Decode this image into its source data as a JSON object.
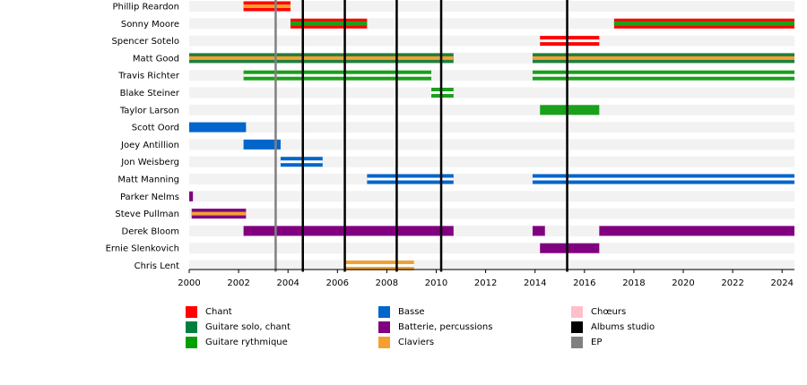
{
  "chart_data": {
    "type": "timeline",
    "title": "",
    "xlim": [
      2000,
      2024.5
    ],
    "x_ticks": [
      "2000",
      "2002",
      "2004",
      "2006",
      "2008",
      "2010",
      "2012",
      "2014",
      "2016",
      "2018",
      "2020",
      "2022",
      "2024"
    ],
    "members": [
      {
        "name": "Phillip Reardon",
        "bars": [
          {
            "start": 2002.2,
            "end": 2004.1,
            "roles": [
              "chant",
              "claviers"
            ]
          }
        ]
      },
      {
        "name": "Sonny Moore",
        "bars": [
          {
            "start": 2004.1,
            "end": 2007.2,
            "roles": [
              "chant",
              "guitare_rythmique"
            ]
          },
          {
            "start": 2017.2,
            "end": 2024.5,
            "roles": [
              "chant",
              "guitare_rythmique"
            ]
          }
        ]
      },
      {
        "name": "Spencer Sotelo",
        "bars": [
          {
            "start": 2014.2,
            "end": 2016.6,
            "roles": [
              "chant"
            ]
          }
        ]
      },
      {
        "name": "Matt Good",
        "bars": [
          {
            "start": 2000.0,
            "end": 2010.7,
            "roles": [
              "guitare_solo",
              "claviers"
            ]
          },
          {
            "start": 2013.9,
            "end": 2024.5,
            "roles": [
              "guitare_solo",
              "claviers"
            ]
          }
        ]
      },
      {
        "name": "Travis Richter",
        "bars": [
          {
            "start": 2002.2,
            "end": 2009.8,
            "roles": [
              "guitare_rythmique"
            ]
          },
          {
            "start": 2013.9,
            "end": 2024.5,
            "roles": [
              "guitare_rythmique"
            ]
          }
        ]
      },
      {
        "name": "Blake Steiner",
        "bars": [
          {
            "start": 2009.8,
            "end": 2010.7,
            "roles": [
              "guitare_rythmique"
            ]
          }
        ]
      },
      {
        "name": "Taylor Larson",
        "bars": [
          {
            "start": 2014.2,
            "end": 2016.6,
            "roles": [
              "guitare_rythmique_solid"
            ]
          }
        ]
      },
      {
        "name": "Scott Oord",
        "bars": [
          {
            "start": 2000.0,
            "end": 2002.3,
            "roles": [
              "basse_solid"
            ]
          }
        ]
      },
      {
        "name": "Joey Antillion",
        "bars": [
          {
            "start": 2002.2,
            "end": 2003.7,
            "roles": [
              "basse_solid"
            ]
          }
        ]
      },
      {
        "name": "Jon Weisberg",
        "bars": [
          {
            "start": 2003.7,
            "end": 2005.4,
            "roles": [
              "basse"
            ]
          }
        ]
      },
      {
        "name": "Matt Manning",
        "bars": [
          {
            "start": 2007.2,
            "end": 2010.7,
            "roles": [
              "basse"
            ]
          },
          {
            "start": 2013.9,
            "end": 2024.5,
            "roles": [
              "basse"
            ]
          }
        ]
      },
      {
        "name": "Parker Nelms",
        "bars": [
          {
            "start": 2000.0,
            "end": 2000.15,
            "roles": [
              "batterie"
            ]
          }
        ]
      },
      {
        "name": "Steve Pullman",
        "bars": [
          {
            "start": 2000.1,
            "end": 2002.3,
            "roles": [
              "batterie",
              "claviers"
            ]
          }
        ]
      },
      {
        "name": "Derek Bloom",
        "bars": [
          {
            "start": 2002.2,
            "end": 2010.7,
            "roles": [
              "batterie"
            ]
          },
          {
            "start": 2013.9,
            "end": 2014.4,
            "roles": [
              "batterie"
            ]
          },
          {
            "start": 2016.6,
            "end": 2024.5,
            "roles": [
              "batterie"
            ]
          }
        ]
      },
      {
        "name": "Ernie Slenkovich",
        "bars": [
          {
            "start": 2014.2,
            "end": 2016.6,
            "roles": [
              "batterie"
            ]
          }
        ]
      },
      {
        "name": "Chris Lent",
        "bars": [
          {
            "start": 2006.3,
            "end": 2009.1,
            "roles": [
              "claviers"
            ]
          }
        ]
      }
    ],
    "albums_studio": [
      2004.6,
      2006.3,
      2008.4,
      2010.2,
      2015.3
    ],
    "ep": [
      2003.5
    ],
    "legend": [
      {
        "key": "chant",
        "label": "Chant",
        "color": "#ff0000"
      },
      {
        "key": "basse",
        "label": "Basse",
        "color": "#0066cc"
      },
      {
        "key": "choeurs",
        "label": "Chœurs",
        "color": "#ffc0cb"
      },
      {
        "key": "guitare_solo",
        "label": "Guitare solo, chant",
        "color": "#008040"
      },
      {
        "key": "batterie",
        "label": "Batterie, percussions",
        "color": "#800080"
      },
      {
        "key": "albums",
        "label": "Albums studio",
        "color": "#000000"
      },
      {
        "key": "guitare_rythmique",
        "label": "Guitare rythmique",
        "color": "#00a000"
      },
      {
        "key": "claviers",
        "label": "Claviers",
        "color": "#f4a030"
      },
      {
        "key": "ep",
        "label": "EP",
        "color": "#808080"
      }
    ],
    "colors": {
      "chant": "#ff0000",
      "guitare_solo": "#1f7f3f",
      "guitare_rythmique": "#1aa01a",
      "basse": "#0066cc",
      "batterie": "#800080",
      "claviers": "#f4a030",
      "albums": "#000000",
      "ep": "#808080",
      "row_band": "#f2f2f2"
    }
  }
}
